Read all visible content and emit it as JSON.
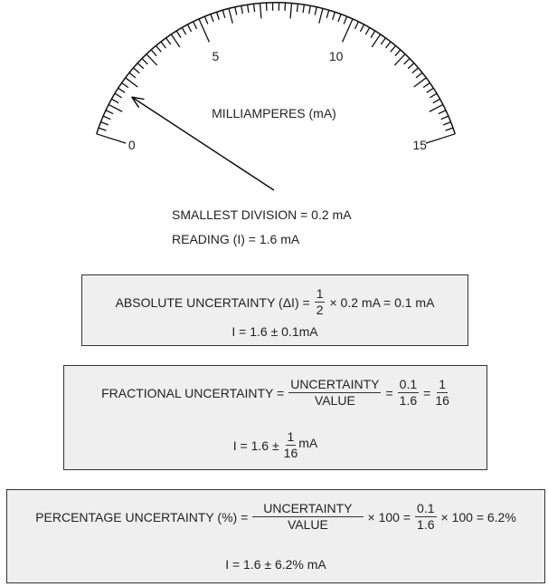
{
  "gauge": {
    "unit_label": "MILLIAMPERES  (mA)",
    "min": 0,
    "max": 15,
    "minor_step": 0.2,
    "scale_labels": [
      "0",
      "5",
      "10",
      "15"
    ],
    "needle_value": 1.6
  },
  "info": {
    "smallest_division": "SMALLEST  DIVISION = 0.2 mA",
    "reading": "READING  (I) = 1.6 mA"
  },
  "absolute": {
    "label": "ABSOLUTE   UNCERTAINTY  (ΔI) =",
    "frac_num": "1",
    "frac_den": "2",
    "rest": "× 0.2 mA = 0.1 mA",
    "result": "I = 1.6 ± 0.1mA"
  },
  "fractional": {
    "label": "FRACTIONAL  UNCERTAINTY =",
    "frac1_num": "UNCERTAINTY",
    "frac1_den": "VALUE",
    "eq1": "=",
    "frac2_num": "0.1",
    "frac2_den": "1.6",
    "eq2": "=",
    "frac3_num": "1",
    "frac3_den": "16",
    "result_prefix": "I = 1.6 ±",
    "result_num": "1",
    "result_den": "16",
    "result_unit": "mA"
  },
  "percentage": {
    "label": "PERCENTAGE   UNCERTAINTY  (%) =",
    "frac1_num": "UNCERTAINTY",
    "frac1_den": "VALUE",
    "mid": "× 100 =",
    "frac2_num": "0.1",
    "frac2_den": "1.6",
    "rest": "× 100  =  6.2%",
    "result": "I = 1.6 ± 6.2% mA"
  }
}
